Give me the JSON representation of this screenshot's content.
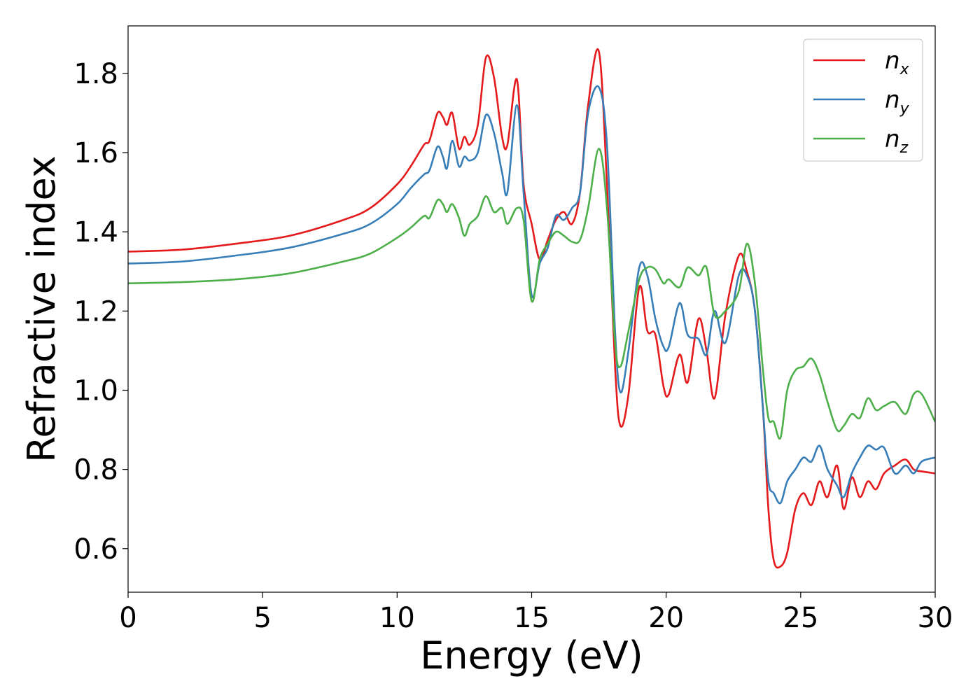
{
  "chart_data": {
    "type": "line",
    "xlabel": "Energy (eV)",
    "ylabel": "Refractive index",
    "xlim": [
      0,
      30
    ],
    "ylim": [
      0.49,
      1.92
    ],
    "xticks": [
      0,
      5,
      10,
      15,
      20,
      25,
      30
    ],
    "xtick_labels": [
      "0",
      "5",
      "10",
      "15",
      "20",
      "25",
      "30"
    ],
    "yticks": [
      0.6,
      0.8,
      1.0,
      1.2,
      1.4,
      1.6,
      1.8
    ],
    "ytick_labels": [
      "0.6",
      "0.8",
      "1.0",
      "1.2",
      "1.4",
      "1.6",
      "1.8"
    ],
    "grid": false,
    "legend_position": "top-right",
    "series": [
      {
        "name": "n_x",
        "label_main": "n",
        "label_sub": "x",
        "color": "#e41a1c",
        "x": [
          0,
          2,
          4,
          6,
          8,
          9,
          10,
          10.5,
          11,
          11.2,
          11.5,
          11.7,
          11.85,
          12.05,
          12.3,
          12.5,
          12.7,
          13.0,
          13.3,
          13.6,
          13.9,
          14.1,
          14.45,
          14.7,
          15.0,
          15.3,
          15.6,
          15.9,
          16.2,
          16.5,
          16.8,
          17.1,
          17.5,
          17.8,
          18.1,
          18.3,
          18.6,
          19.0,
          19.3,
          19.6,
          19.9,
          20.1,
          20.5,
          20.8,
          21.2,
          21.5,
          21.8,
          22.2,
          22.7,
          23.0,
          23.3,
          23.6,
          23.8,
          24.0,
          24.25,
          24.5,
          24.8,
          25.1,
          25.4,
          25.7,
          26.0,
          26.35,
          26.6,
          26.9,
          27.2,
          27.5,
          27.8,
          28.1,
          28.5,
          28.9,
          29.2,
          29.5,
          30.0
        ],
        "y": [
          1.35,
          1.355,
          1.37,
          1.39,
          1.43,
          1.46,
          1.52,
          1.565,
          1.62,
          1.63,
          1.7,
          1.69,
          1.67,
          1.7,
          1.61,
          1.64,
          1.62,
          1.67,
          1.84,
          1.79,
          1.64,
          1.62,
          1.785,
          1.52,
          1.42,
          1.33,
          1.38,
          1.43,
          1.45,
          1.42,
          1.5,
          1.72,
          1.855,
          1.52,
          1.06,
          0.91,
          0.99,
          1.26,
          1.15,
          1.14,
          1.01,
          0.99,
          1.09,
          1.02,
          1.18,
          1.1,
          0.98,
          1.19,
          1.34,
          1.3,
          1.2,
          0.95,
          0.7,
          0.57,
          0.555,
          0.59,
          0.7,
          0.74,
          0.71,
          0.77,
          0.73,
          0.81,
          0.7,
          0.78,
          0.73,
          0.77,
          0.75,
          0.79,
          0.81,
          0.825,
          0.8,
          0.795,
          0.79
        ]
      },
      {
        "name": "n_y",
        "label_main": "n",
        "label_sub": "y",
        "color": "#377eb8",
        "x": [
          0,
          2,
          4,
          6,
          8,
          9,
          10,
          10.5,
          11,
          11.2,
          11.5,
          11.7,
          11.85,
          12.05,
          12.3,
          12.5,
          12.7,
          13.0,
          13.3,
          13.6,
          13.9,
          14.1,
          14.45,
          14.7,
          15.0,
          15.3,
          15.6,
          15.9,
          16.2,
          16.5,
          16.8,
          17.1,
          17.5,
          17.8,
          18.1,
          18.3,
          18.6,
          19.0,
          19.3,
          19.6,
          19.9,
          20.1,
          20.5,
          20.8,
          21.2,
          21.5,
          21.8,
          22.2,
          22.7,
          23.0,
          23.3,
          23.6,
          23.8,
          24.0,
          24.25,
          24.5,
          24.8,
          25.1,
          25.4,
          25.7,
          26.0,
          26.35,
          26.6,
          26.9,
          27.2,
          27.5,
          27.8,
          28.1,
          28.5,
          28.9,
          29.2,
          29.5,
          30.0
        ],
        "y": [
          1.32,
          1.325,
          1.34,
          1.36,
          1.395,
          1.42,
          1.47,
          1.51,
          1.545,
          1.555,
          1.615,
          1.59,
          1.56,
          1.63,
          1.565,
          1.59,
          1.58,
          1.6,
          1.695,
          1.65,
          1.55,
          1.5,
          1.72,
          1.5,
          1.24,
          1.32,
          1.36,
          1.44,
          1.43,
          1.46,
          1.5,
          1.7,
          1.765,
          1.62,
          1.15,
          0.995,
          1.1,
          1.31,
          1.29,
          1.18,
          1.11,
          1.11,
          1.22,
          1.14,
          1.13,
          1.09,
          1.2,
          1.12,
          1.29,
          1.29,
          1.2,
          0.95,
          0.77,
          0.74,
          0.715,
          0.77,
          0.8,
          0.83,
          0.82,
          0.86,
          0.8,
          0.76,
          0.73,
          0.79,
          0.83,
          0.86,
          0.85,
          0.855,
          0.79,
          0.81,
          0.79,
          0.82,
          0.83
        ]
      },
      {
        "name": "n_z",
        "label_main": "n",
        "label_sub": "z",
        "color": "#4daf4a",
        "x": [
          0,
          2,
          4,
          6,
          8,
          9,
          10,
          10.5,
          11,
          11.2,
          11.5,
          11.7,
          11.85,
          12.05,
          12.3,
          12.5,
          12.7,
          13.0,
          13.3,
          13.6,
          13.9,
          14.1,
          14.45,
          14.7,
          15.0,
          15.3,
          15.6,
          15.9,
          16.2,
          16.5,
          16.8,
          17.1,
          17.5,
          17.8,
          18.1,
          18.3,
          18.6,
          19.0,
          19.3,
          19.6,
          19.9,
          20.1,
          20.5,
          20.8,
          21.2,
          21.5,
          21.8,
          22.2,
          22.7,
          23.0,
          23.3,
          23.6,
          23.8,
          24.0,
          24.25,
          24.5,
          24.8,
          25.1,
          25.4,
          25.7,
          26.0,
          26.35,
          26.6,
          26.9,
          27.2,
          27.5,
          27.8,
          28.1,
          28.5,
          28.9,
          29.2,
          29.5,
          30.0
        ],
        "y": [
          1.27,
          1.273,
          1.28,
          1.295,
          1.325,
          1.345,
          1.385,
          1.41,
          1.44,
          1.435,
          1.48,
          1.47,
          1.45,
          1.47,
          1.435,
          1.39,
          1.42,
          1.44,
          1.49,
          1.45,
          1.46,
          1.42,
          1.46,
          1.43,
          1.225,
          1.33,
          1.37,
          1.4,
          1.39,
          1.375,
          1.38,
          1.46,
          1.61,
          1.46,
          1.12,
          1.06,
          1.15,
          1.28,
          1.31,
          1.305,
          1.27,
          1.28,
          1.26,
          1.31,
          1.29,
          1.31,
          1.19,
          1.2,
          1.25,
          1.37,
          1.27,
          1.05,
          0.93,
          0.92,
          0.88,
          1.0,
          1.05,
          1.06,
          1.08,
          1.04,
          0.97,
          0.9,
          0.91,
          0.94,
          0.93,
          0.98,
          0.95,
          0.96,
          0.97,
          0.94,
          0.99,
          0.99,
          0.92
        ]
      }
    ]
  }
}
